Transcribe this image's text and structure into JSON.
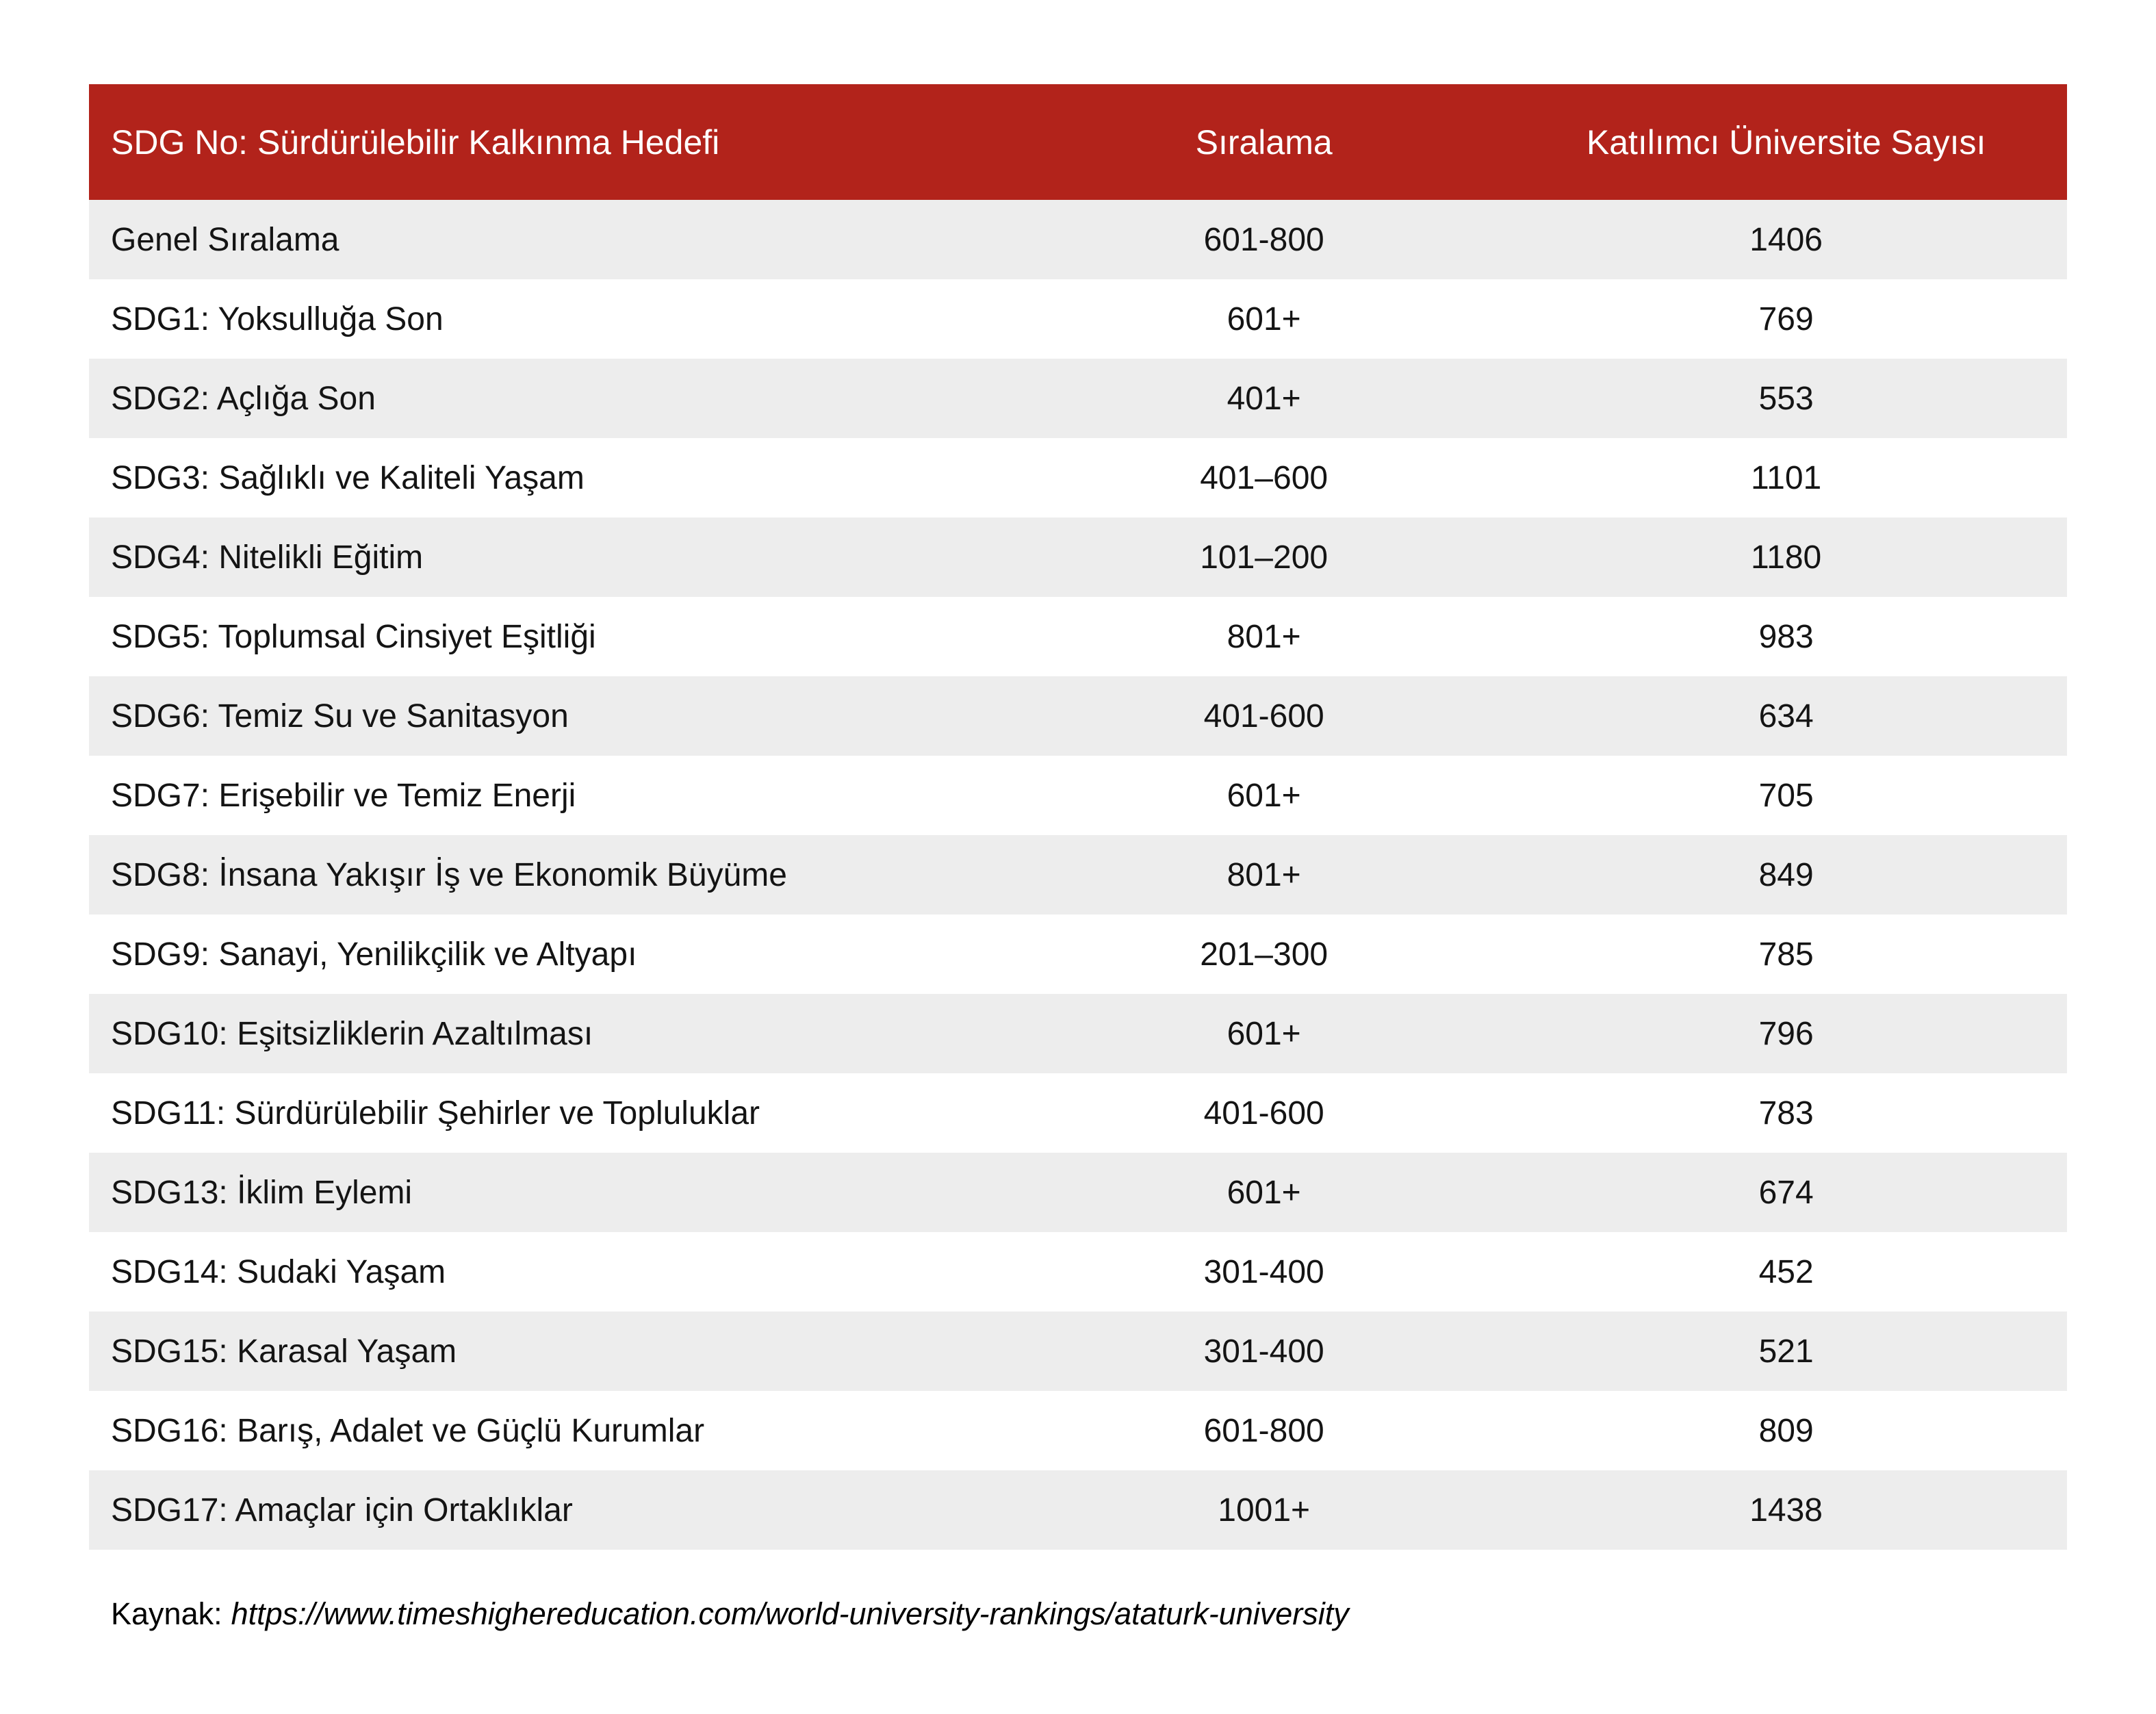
{
  "page": {
    "background": "#FFFFFF"
  },
  "table": {
    "header_bg": "#B2231B",
    "header_text_color": "#FFFFFF",
    "row_alt_bg": "#EDEDED",
    "row_bg": "#FFFFFF",
    "columns": [
      "SDG No: Sürdürülebilir Kalkınma Hedefi",
      "Sıralama",
      "Katılımcı Üniversite Sayısı"
    ],
    "rows": [
      {
        "goal": "Genel Sıralama",
        "rank": "601-800",
        "count": "1406"
      },
      {
        "goal": "SDG1: Yoksulluğa Son",
        "rank": "601+",
        "count": "769"
      },
      {
        "goal": "SDG2: Açlığa Son",
        "rank": "401+",
        "count": "553"
      },
      {
        "goal": "SDG3: Sağlıklı ve Kaliteli Yaşam",
        "rank": "401–600",
        "count": "1101"
      },
      {
        "goal": "SDG4: Nitelikli Eğitim",
        "rank": "101–200",
        "count": "1180"
      },
      {
        "goal": "SDG5: Toplumsal Cinsiyet Eşitliği",
        "rank": "801+",
        "count": "983"
      },
      {
        "goal": "SDG6: Temiz Su ve Sanitasyon",
        "rank": "401-600",
        "count": "634"
      },
      {
        "goal": "SDG7: Erişebilir ve Temiz Enerji",
        "rank": "601+",
        "count": "705"
      },
      {
        "goal": "SDG8: İnsana Yakışır İş ve Ekonomik Büyüme",
        "rank": "801+",
        "count": "849"
      },
      {
        "goal": "SDG9: Sanayi, Yenilikçilik ve Altyapı",
        "rank": "201–300",
        "count": "785"
      },
      {
        "goal": "SDG10: Eşitsizliklerin Azaltılması",
        "rank": "601+",
        "count": "796"
      },
      {
        "goal": "SDG11: Sürdürülebilir Şehirler ve Topluluklar",
        "rank": "401-600",
        "count": "783"
      },
      {
        "goal": "SDG13: İklim Eylemi",
        "rank": "601+",
        "count": "674"
      },
      {
        "goal": "SDG14: Sudaki Yaşam",
        "rank": "301-400",
        "count": "452"
      },
      {
        "goal": "SDG15: Karasal Yaşam",
        "rank": "301-400",
        "count": "521"
      },
      {
        "goal": "SDG16: Barış, Adalet ve Güçlü Kurumlar",
        "rank": "601-800",
        "count": "809"
      },
      {
        "goal": "SDG17: Amaçlar için Ortaklıklar",
        "rank": "1001+",
        "count": "1438"
      }
    ]
  },
  "footer": {
    "label": "Kaynak:",
    "source": "https://www.timeshighereducation.com/world-university-rankings/ataturk-university"
  }
}
